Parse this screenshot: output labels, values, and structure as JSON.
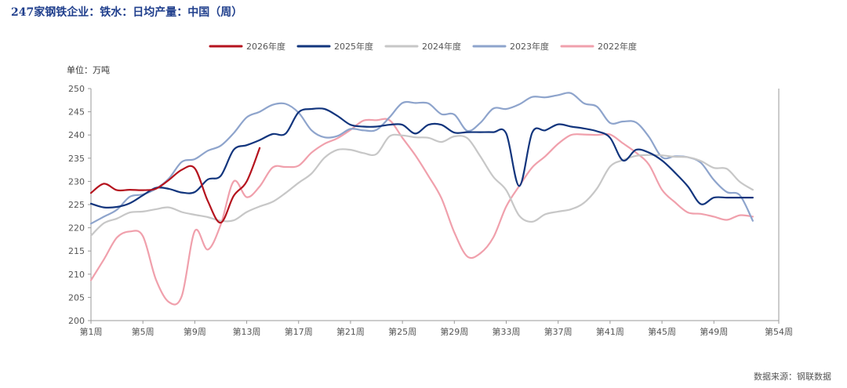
{
  "header": {
    "title": "247家钢铁企业：铁水：日均产量：中国（周）"
  },
  "footer": {
    "source": "数据来源：钢联数据"
  },
  "chart_data": {
    "type": "line",
    "unit_label": "单位：万吨",
    "ylim": [
      200,
      250
    ],
    "yticks": [
      200,
      205,
      210,
      215,
      220,
      225,
      230,
      235,
      240,
      245,
      250
    ],
    "xlim": [
      1,
      54
    ],
    "xticks": [
      1,
      5,
      9,
      13,
      17,
      21,
      25,
      29,
      33,
      37,
      41,
      45,
      49,
      54
    ],
    "xtick_labels": [
      "第1周",
      "第5周",
      "第9周",
      "第13周",
      "第17周",
      "第21周",
      "第25周",
      "第29周",
      "第33周",
      "第37周",
      "第41周",
      "第45周",
      "第49周",
      "第54周"
    ],
    "legend_position": "top-center",
    "series": [
      {
        "name": "2026年度",
        "color": "#b5131e",
        "x": [
          1,
          2,
          3,
          4,
          5,
          6,
          7,
          8,
          9,
          10,
          11,
          12,
          13,
          14
        ],
        "values": [
          227.5,
          229.5,
          228.1,
          228.2,
          228.1,
          228.4,
          230.3,
          232.5,
          232.8,
          225.8,
          221.1,
          226.9,
          230.0,
          237.2
        ]
      },
      {
        "name": "2025年度",
        "color": "#12357d",
        "x": [
          1,
          2,
          3,
          4,
          5,
          6,
          7,
          8,
          9,
          10,
          11,
          12,
          13,
          14,
          15,
          16,
          17,
          18,
          19,
          20,
          21,
          22,
          23,
          24,
          25,
          26,
          27,
          28,
          29,
          30,
          31,
          32,
          33,
          34,
          35,
          36,
          37,
          38,
          39,
          40,
          41,
          42,
          43,
          44,
          45,
          46,
          47,
          48,
          49,
          50,
          51,
          52
        ],
        "values": [
          225.2,
          224.4,
          224.5,
          225.3,
          227.0,
          228.6,
          228.4,
          227.6,
          227.7,
          230.4,
          231.2,
          236.8,
          237.8,
          238.9,
          240.2,
          240.3,
          244.9,
          245.6,
          245.6,
          244.1,
          242.2,
          241.8,
          241.8,
          242.2,
          242.2,
          240.3,
          242.2,
          242.2,
          240.5,
          240.6,
          240.6,
          240.6,
          240.3,
          229.0,
          240.5,
          241.0,
          242.3,
          241.8,
          241.4,
          240.8,
          239.4,
          234.5,
          236.8,
          236.2,
          234.5,
          231.9,
          228.9,
          225.1,
          226.5,
          226.5,
          226.5,
          226.5
        ]
      },
      {
        "name": "2024年度",
        "color": "#c7c7c7",
        "x": [
          1,
          2,
          3,
          4,
          5,
          6,
          7,
          8,
          9,
          10,
          11,
          12,
          13,
          14,
          15,
          16,
          17,
          18,
          19,
          20,
          21,
          22,
          23,
          24,
          25,
          26,
          27,
          28,
          29,
          30,
          31,
          32,
          33,
          34,
          35,
          36,
          37,
          38,
          39,
          40,
          41,
          42,
          43,
          44,
          45,
          46,
          47,
          48,
          49,
          50,
          51,
          52
        ],
        "values": [
          218.3,
          221.0,
          222.0,
          223.3,
          223.5,
          224.0,
          224.4,
          223.4,
          222.8,
          222.3,
          221.5,
          221.6,
          223.4,
          224.6,
          225.6,
          227.5,
          229.7,
          231.7,
          235.1,
          236.8,
          236.8,
          236.1,
          235.9,
          239.7,
          239.9,
          239.5,
          239.4,
          238.5,
          239.7,
          239.3,
          235.4,
          231.0,
          228.1,
          222.6,
          221.3,
          222.9,
          223.5,
          224.0,
          225.4,
          228.5,
          233.2,
          234.6,
          235.5,
          235.7,
          235.6,
          235.3,
          235.2,
          234.4,
          232.9,
          232.7,
          229.9,
          228.2
        ]
      },
      {
        "name": "2023年度",
        "color": "#8ea4cc",
        "x": [
          1,
          2,
          3,
          4,
          5,
          6,
          7,
          8,
          9,
          10,
          11,
          12,
          13,
          14,
          15,
          16,
          17,
          18,
          19,
          20,
          21,
          22,
          23,
          24,
          25,
          26,
          27,
          28,
          29,
          30,
          31,
          32,
          33,
          34,
          35,
          36,
          37,
          38,
          39,
          40,
          41,
          42,
          43,
          44,
          45,
          46,
          47,
          48,
          49,
          50,
          51,
          52
        ],
        "values": [
          220.9,
          222.4,
          223.9,
          226.7,
          227.2,
          228.4,
          230.6,
          234.2,
          234.8,
          236.6,
          237.7,
          240.4,
          243.8,
          245.0,
          246.5,
          246.7,
          244.8,
          241.0,
          239.5,
          239.8,
          241.3,
          241.0,
          241.1,
          243.8,
          246.9,
          246.9,
          246.8,
          244.5,
          244.4,
          240.9,
          242.6,
          245.7,
          245.6,
          246.6,
          248.2,
          248.1,
          248.6,
          249.0,
          246.8,
          246.1,
          242.6,
          242.9,
          242.7,
          239.6,
          235.2,
          235.4,
          235.2,
          234.0,
          230.3,
          227.7,
          227.0,
          221.5
        ]
      },
      {
        "name": "2022年度",
        "color": "#f0a0ac",
        "x": [
          1,
          2,
          3,
          4,
          5,
          6,
          7,
          8,
          9,
          10,
          11,
          12,
          13,
          14,
          15,
          16,
          17,
          18,
          19,
          20,
          21,
          22,
          23,
          24,
          25,
          26,
          27,
          28,
          29,
          30,
          31,
          32,
          33,
          34,
          35,
          36,
          37,
          38,
          39,
          40,
          41,
          42,
          43,
          44,
          45,
          46,
          47,
          48,
          49,
          50,
          51,
          52
        ],
        "values": [
          208.7,
          213.2,
          217.9,
          219.2,
          218.2,
          208.9,
          204.0,
          205.3,
          219.3,
          215.3,
          220.7,
          230.0,
          226.6,
          228.9,
          233.0,
          233.1,
          233.4,
          236.2,
          238.1,
          239.3,
          241.1,
          243.1,
          243.2,
          243.2,
          239.4,
          235.6,
          231.2,
          226.4,
          219.0,
          213.8,
          214.5,
          217.9,
          224.6,
          229.0,
          233.0,
          235.4,
          238.1,
          240.0,
          240.1,
          240.0,
          240.1,
          238.2,
          236.2,
          233.6,
          228.2,
          225.5,
          223.3,
          223.0,
          222.4,
          221.7,
          222.7,
          222.4
        ]
      }
    ]
  }
}
